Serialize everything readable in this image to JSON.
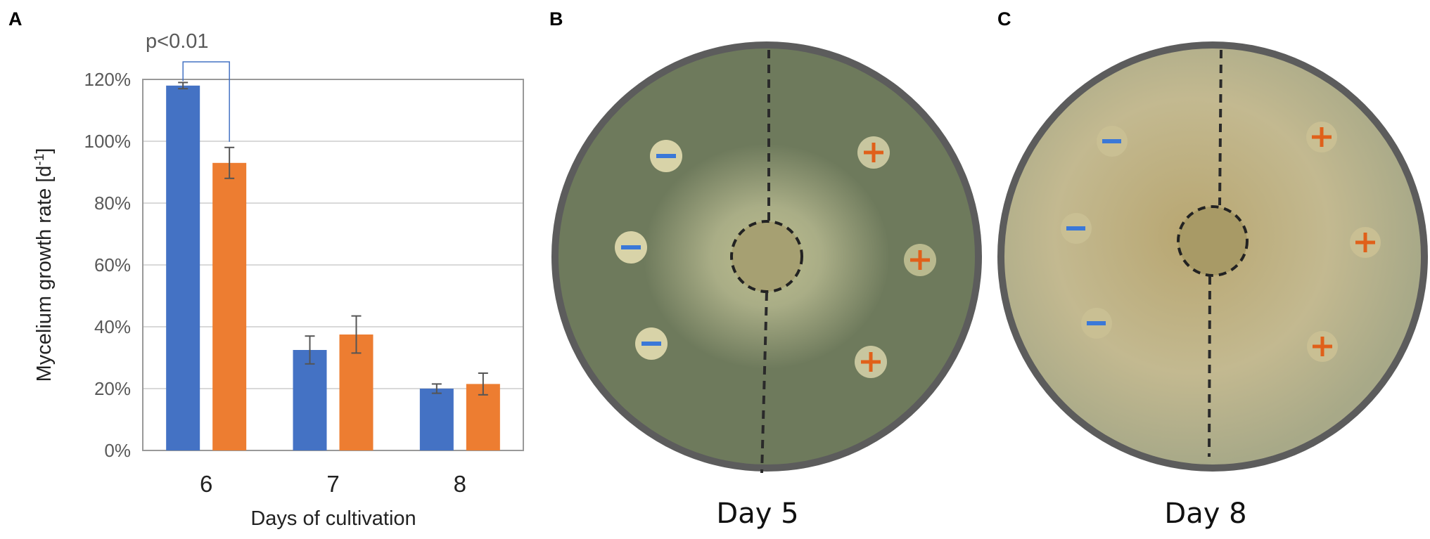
{
  "panels": {
    "a": {
      "letter": "A"
    },
    "b": {
      "letter": "B",
      "caption": "Day 5"
    },
    "c": {
      "letter": "C",
      "caption": "Day 8"
    }
  },
  "plate_marks": {
    "minus": "−",
    "plus": "+"
  },
  "colors": {
    "series_1": "#4472c4",
    "series_2": "#ed7d31",
    "plate_rim": "#5c5c5c",
    "plate_b_agar": "#6e7a5c",
    "plate_c_agar": "#b4ad83",
    "minus_mark": "#3a78d8",
    "plus_mark": "#e0601a"
  },
  "chart_data": {
    "type": "bar",
    "categories": [
      "6",
      "7",
      "8"
    ],
    "series": [
      {
        "values": [
          118,
          32.5,
          20
        ],
        "errors": [
          1,
          4.5,
          1.5
        ]
      },
      {
        "values": [
          93,
          37.5,
          21.5
        ],
        "errors": [
          5,
          6,
          3.5
        ]
      }
    ],
    "xlabel": "Days of cultivation",
    "ylabel": "Mycelium growth rate [d",
    "ylabel_superscript": "-1",
    "ylabel_suffix": "]",
    "ylim": [
      0,
      120
    ],
    "yticks": [
      "0%",
      "20%",
      "40%",
      "60%",
      "80%",
      "100%",
      "120%"
    ],
    "grid": true,
    "annotation": "p<0.01"
  }
}
